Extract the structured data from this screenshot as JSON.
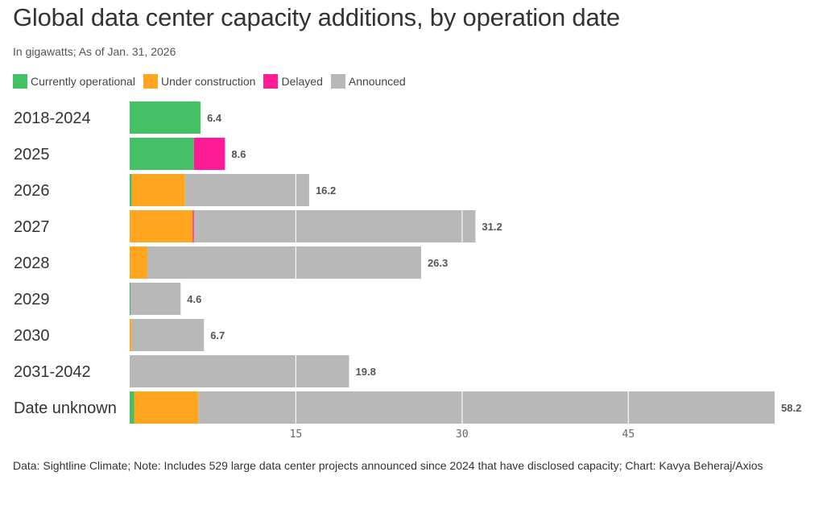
{
  "title": "Global data center capacity additions, by operation date",
  "subtitle": "In gigawatts; As of Jan. 31, 2026",
  "footer": "Data: Sightline Climate; Note: Includes 529 large data center projects announced since 2024 that have disclosed capacity; Chart: Kavya Beheraj/Axios",
  "chart_data": {
    "type": "bar",
    "orientation": "horizontal",
    "stacked": true,
    "title": "Global data center capacity additions, by operation date",
    "subtitle": "In gigawatts; As of Jan. 31, 2026",
    "xlabel": "",
    "ylabel": "",
    "xlim": [
      0,
      58.2
    ],
    "xticks": [
      15,
      30,
      45
    ],
    "grid": true,
    "legend_position": "top-left",
    "categories": [
      "2018-2024",
      "2025",
      "2026",
      "2027",
      "2028",
      "2029",
      "2030",
      "2031-2042",
      "Date unknown"
    ],
    "series": [
      {
        "name": "Currently operational",
        "color": "#44c165",
        "values": [
          6.4,
          5.8,
          0.2,
          0.0,
          0.0,
          0.1,
          0.0,
          0.0,
          0.4
        ]
      },
      {
        "name": "Under construction",
        "color": "#ffa51f",
        "values": [
          0.0,
          0.0,
          4.8,
          5.7,
          1.6,
          0.0,
          0.2,
          0.0,
          5.8
        ]
      },
      {
        "name": "Delayed",
        "color": "#ff1a96",
        "values": [
          0.0,
          2.8,
          0.0,
          0.1,
          0.0,
          0.0,
          0.0,
          0.0,
          0.0
        ]
      },
      {
        "name": "Announced",
        "color": "#b8b8b8",
        "values": [
          0.0,
          0.0,
          11.2,
          25.4,
          24.7,
          4.5,
          6.5,
          19.8,
          52.0
        ]
      }
    ],
    "totals": [
      "6.4",
      "8.6",
      "16.2",
      "31.2",
      "26.3",
      "4.6",
      "6.7",
      "19.8",
      "58.2"
    ]
  }
}
